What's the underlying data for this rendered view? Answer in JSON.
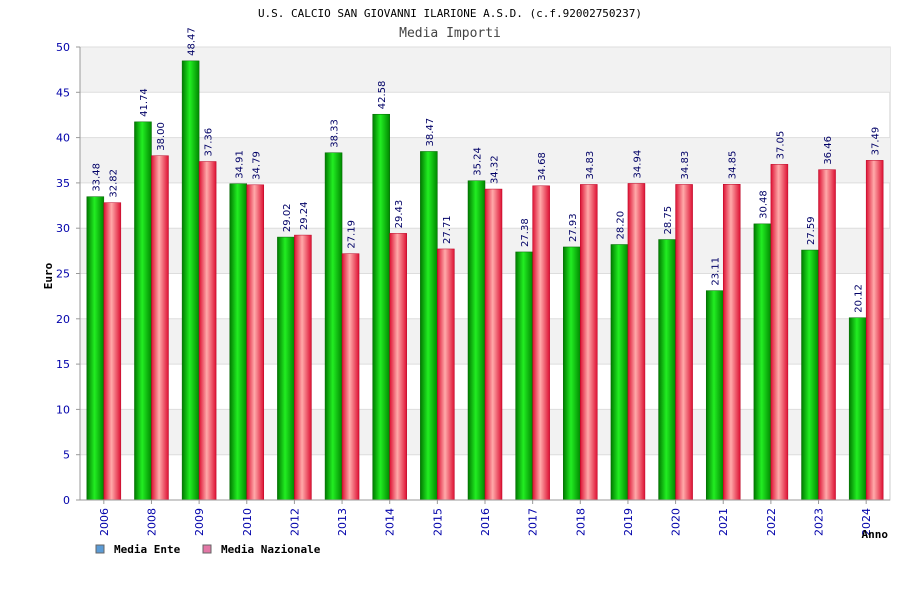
{
  "chart_data": {
    "type": "bar",
    "title": "U.S. CALCIO SAN GIOVANNI ILARIONE A.S.D. (c.f.92002750237)",
    "subtitle": "Media Importi",
    "ylabel": "Euro",
    "xlabel": "Anno",
    "ylim": [
      0,
      50
    ],
    "yticks": [
      0,
      5,
      10,
      15,
      20,
      25,
      30,
      35,
      40,
      45,
      50
    ],
    "grid": true,
    "legend_position": "bottom-left",
    "categories": [
      "2006",
      "2008",
      "2009",
      "2010",
      "2012",
      "2013",
      "2014",
      "2015",
      "2016",
      "2017",
      "2018",
      "2019",
      "2020",
      "2021",
      "2022",
      "2023",
      "2024"
    ],
    "series": [
      {
        "name": "Media Ente",
        "legend_color": "#5b9bd5",
        "color": "#00cc00",
        "values": [
          33.48,
          41.74,
          48.47,
          34.91,
          29.02,
          38.33,
          42.58,
          38.47,
          35.24,
          27.38,
          27.93,
          28.2,
          28.75,
          23.11,
          30.48,
          27.59,
          20.12
        ],
        "labels": [
          "33.48",
          "41.74",
          "48.47",
          "34.91",
          "29.02",
          "38.33",
          "42.58",
          "38.47",
          "35.24",
          "27.38",
          "27.93",
          "28.20",
          "28.75",
          "23.11",
          "30.48",
          "27.59",
          "20.12"
        ]
      },
      {
        "name": "Media Nazionale",
        "legend_color": "#e377a6",
        "color": "#ee3344",
        "values": [
          32.82,
          38.0,
          37.36,
          34.79,
          29.24,
          27.19,
          29.43,
          27.71,
          34.32,
          34.68,
          34.83,
          34.94,
          34.83,
          34.85,
          37.05,
          36.46,
          37.49
        ],
        "labels": [
          "32.82",
          "38.00",
          "37.36",
          "34.79",
          "29.24",
          "27.19",
          "29.43",
          "27.71",
          "34.32",
          "34.68",
          "34.83",
          "34.94",
          "34.83",
          "34.85",
          "37.05",
          "36.46",
          "37.49"
        ]
      }
    ]
  }
}
